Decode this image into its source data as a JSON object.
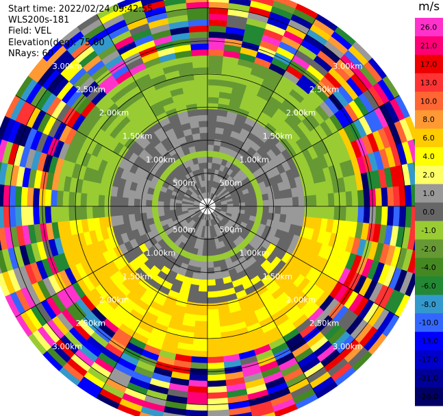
{
  "header": {
    "start_time": "Start time: 2022/02/24 09:42:55",
    "instrument": "WLS200s-181",
    "field": "Field: VEL",
    "elevation": "Elevation(deg): 75.00",
    "nrays": "NRays: 60"
  },
  "colorbar": {
    "units": "m/s",
    "labels": [
      "26.0",
      "21.0",
      "17.0",
      "13.0",
      "10.0",
      "8.0",
      "6.0",
      "4.0",
      "2.0",
      "1.0",
      "0.0",
      "-1.0",
      "-2.0",
      "-4.0",
      "-6.0",
      "-8.0",
      "-10.0",
      "-13.0",
      "-17.0",
      "-21.0",
      "-26.0",
      "-30.0"
    ],
    "colors": [
      "#ff33cc",
      "#ff0077",
      "#ee0000",
      "#ff3333",
      "#ff6633",
      "#ff9933",
      "#ffcc00",
      "#ffff00",
      "#ffff66",
      "#999999",
      "#666666",
      "#99cc33",
      "#669933",
      "#448822",
      "#228833",
      "#3399cc",
      "#3366ff",
      "#0000ff",
      "#0000cc",
      "#000099",
      "#000066"
    ]
  },
  "chart_data": {
    "type": "heatmap",
    "subtype": "polar-ppi",
    "field": "VEL",
    "units": "m/s",
    "nrays": 60,
    "elevation_deg": 75.0,
    "start_time": "2022/02/24 09:42:55",
    "range_rings": [
      {
        "label": "500m",
        "km": 0.5
      },
      {
        "label": "1.00km",
        "km": 1.0
      },
      {
        "label": "1.50km",
        "km": 1.5
      },
      {
        "label": "2.00km",
        "km": 2.0
      },
      {
        "label": "2.50km",
        "km": 2.5
      },
      {
        "label": "3.00km",
        "km": 3.0
      }
    ],
    "max_range_km": 3.35,
    "inner_gap_km": 0.12,
    "colorbar_bounds": [
      -30.0,
      30.0
    ],
    "pattern_summary": "Near-zero velocities (grey) within ~1.5 km with a thin green ring near 0.8 km; green band 1.5-2.2 km in the north; yellow/orange band 1.5-2.3 km in the south-east; random mixed colours beyond ~2.3 km"
  }
}
